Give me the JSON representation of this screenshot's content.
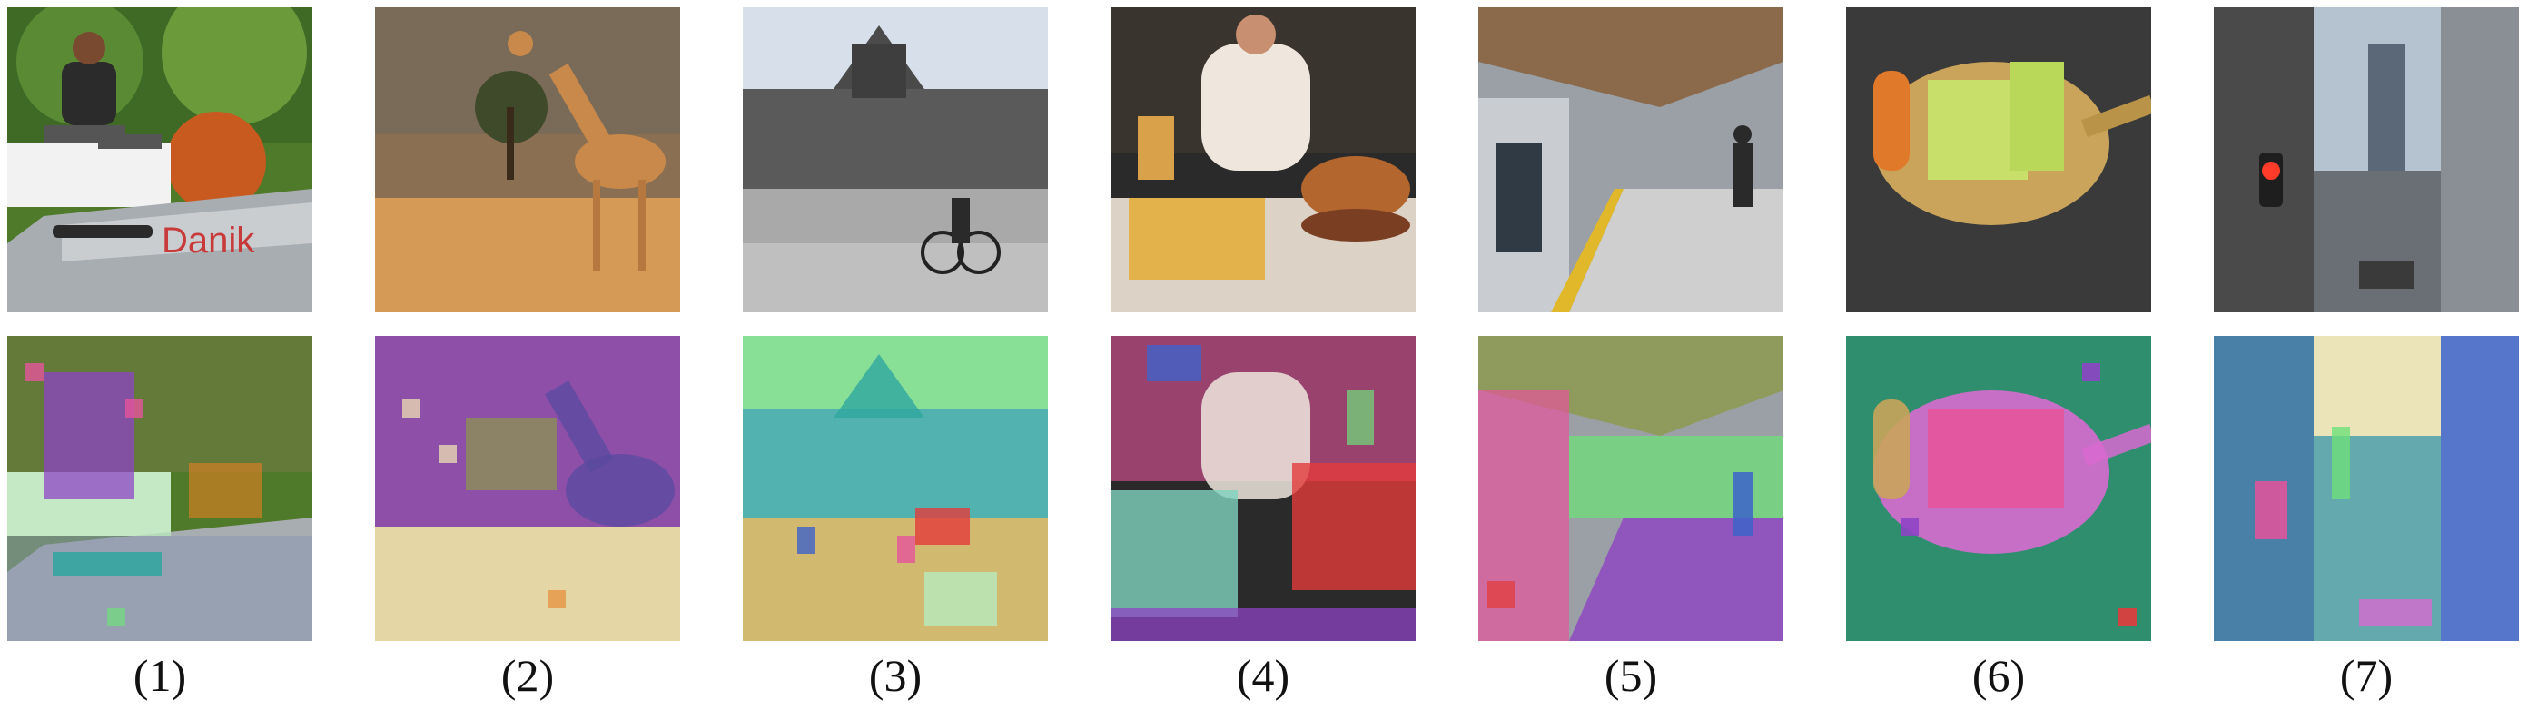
{
  "panels": [
    {
      "caption": "(1)",
      "subject": "skateboarder jumping over graffiti ledge",
      "graffiti_text": "Danik"
    },
    {
      "caption": "(2)",
      "subject": "giraffe in savanna"
    },
    {
      "caption": "(3)",
      "subject": "gothic building and town square"
    },
    {
      "caption": "(4)",
      "subject": "woman at table with burger and fries"
    },
    {
      "caption": "(5)",
      "subject": "train station platform"
    },
    {
      "caption": "(6)",
      "subject": "spoon with vegetables"
    },
    {
      "caption": "(7)",
      "subject": "city street with traffic light"
    }
  ],
  "colors": {
    "purple": "#8e44c4",
    "green": "#6ee07a",
    "teal": "#2fa6a0",
    "cream": "#f4eab4",
    "pink": "#e5549b",
    "red": "#e33b3b",
    "blue": "#3d63c9",
    "orange": "#e67e22"
  }
}
